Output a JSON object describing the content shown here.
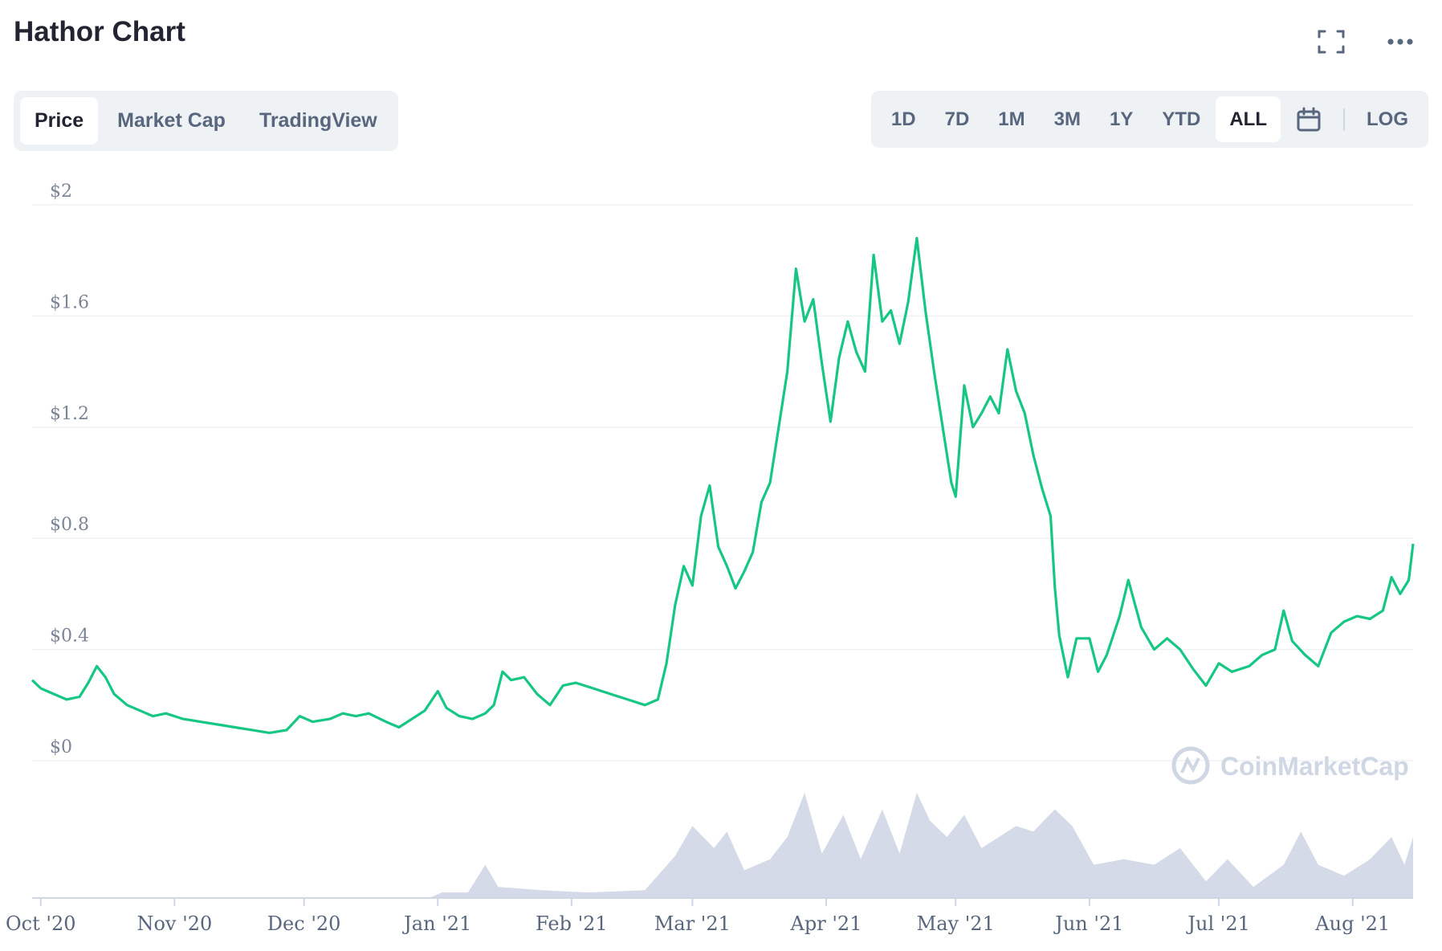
{
  "title": "Hathor Chart",
  "tabs": [
    {
      "label": "Price",
      "active": true
    },
    {
      "label": "Market Cap",
      "active": false
    },
    {
      "label": "TradingView",
      "active": false
    }
  ],
  "ranges": [
    {
      "label": "1D"
    },
    {
      "label": "7D"
    },
    {
      "label": "1M"
    },
    {
      "label": "3M"
    },
    {
      "label": "1Y"
    },
    {
      "label": "YTD"
    },
    {
      "label": "ALL",
      "active": true
    }
  ],
  "log_label": "LOG",
  "icons": {
    "fullscreen": "fullscreen-icon",
    "more": "more-icon",
    "calendar": "calendar-icon"
  },
  "watermark": "CoinMarketCap",
  "colors": {
    "line": "#16c784",
    "volume": "#cfd6e4",
    "grid": "#eff2f5",
    "text": "#58667e"
  },
  "chart_data": {
    "type": "line",
    "ylim": [
      0,
      2
    ],
    "yticks": [
      "$0",
      "$0.4",
      "$0.8",
      "$1.2",
      "$1.6",
      "$2"
    ],
    "ytick_values": [
      0,
      0.4,
      0.8,
      1.2,
      1.6,
      2.0
    ],
    "x_labels": [
      "Oct '20",
      "Nov '20",
      "Dec '20",
      "Jan '21",
      "Feb '21",
      "Mar '21",
      "Apr '21",
      "May '21",
      "Jun '21",
      "Jul '21",
      "Aug '21"
    ],
    "x_label_dates": [
      "2020-10-01",
      "2020-11-01",
      "2020-12-01",
      "2021-01-01",
      "2021-02-01",
      "2021-03-01",
      "2021-04-01",
      "2021-05-01",
      "2021-06-01",
      "2021-07-01",
      "2021-08-01"
    ],
    "xlim": [
      "2020-09-29",
      "2021-08-15"
    ],
    "series": [
      {
        "values": [
          [
            "2020-09-29",
            0.29
          ],
          [
            "2020-10-01",
            0.26
          ],
          [
            "2020-10-04",
            0.24
          ],
          [
            "2020-10-07",
            0.22
          ],
          [
            "2020-10-10",
            0.23
          ],
          [
            "2020-10-12",
            0.28
          ],
          [
            "2020-10-14",
            0.34
          ],
          [
            "2020-10-16",
            0.3
          ],
          [
            "2020-10-18",
            0.24
          ],
          [
            "2020-10-21",
            0.2
          ],
          [
            "2020-10-24",
            0.18
          ],
          [
            "2020-10-27",
            0.16
          ],
          [
            "2020-10-30",
            0.17
          ],
          [
            "2020-11-03",
            0.15
          ],
          [
            "2020-11-07",
            0.14
          ],
          [
            "2020-11-11",
            0.13
          ],
          [
            "2020-11-15",
            0.12
          ],
          [
            "2020-11-19",
            0.11
          ],
          [
            "2020-11-23",
            0.1
          ],
          [
            "2020-11-27",
            0.11
          ],
          [
            "2020-11-30",
            0.16
          ],
          [
            "2020-12-03",
            0.14
          ],
          [
            "2020-12-07",
            0.15
          ],
          [
            "2020-12-10",
            0.17
          ],
          [
            "2020-12-13",
            0.16
          ],
          [
            "2020-12-16",
            0.17
          ],
          [
            "2020-12-20",
            0.14
          ],
          [
            "2020-12-23",
            0.12
          ],
          [
            "2020-12-26",
            0.15
          ],
          [
            "2020-12-29",
            0.18
          ],
          [
            "2021-01-01",
            0.25
          ],
          [
            "2021-01-03",
            0.19
          ],
          [
            "2021-01-06",
            0.16
          ],
          [
            "2021-01-09",
            0.15
          ],
          [
            "2021-01-12",
            0.17
          ],
          [
            "2021-01-14",
            0.2
          ],
          [
            "2021-01-16",
            0.32
          ],
          [
            "2021-01-18",
            0.29
          ],
          [
            "2021-01-21",
            0.3
          ],
          [
            "2021-01-24",
            0.24
          ],
          [
            "2021-01-27",
            0.2
          ],
          [
            "2021-01-30",
            0.27
          ],
          [
            "2021-02-02",
            0.28
          ],
          [
            "2021-02-06",
            0.26
          ],
          [
            "2021-02-10",
            0.24
          ],
          [
            "2021-02-14",
            0.22
          ],
          [
            "2021-02-18",
            0.2
          ],
          [
            "2021-02-21",
            0.22
          ],
          [
            "2021-02-23",
            0.35
          ],
          [
            "2021-02-25",
            0.56
          ],
          [
            "2021-02-27",
            0.7
          ],
          [
            "2021-03-01",
            0.63
          ],
          [
            "2021-03-03",
            0.88
          ],
          [
            "2021-03-05",
            0.99
          ],
          [
            "2021-03-07",
            0.77
          ],
          [
            "2021-03-09",
            0.7
          ],
          [
            "2021-03-11",
            0.62
          ],
          [
            "2021-03-13",
            0.68
          ],
          [
            "2021-03-15",
            0.75
          ],
          [
            "2021-03-17",
            0.93
          ],
          [
            "2021-03-19",
            1.0
          ],
          [
            "2021-03-21",
            1.2
          ],
          [
            "2021-03-23",
            1.4
          ],
          [
            "2021-03-25",
            1.77
          ],
          [
            "2021-03-27",
            1.58
          ],
          [
            "2021-03-29",
            1.66
          ],
          [
            "2021-03-31",
            1.43
          ],
          [
            "2021-04-02",
            1.22
          ],
          [
            "2021-04-04",
            1.45
          ],
          [
            "2021-04-06",
            1.58
          ],
          [
            "2021-04-08",
            1.47
          ],
          [
            "2021-04-10",
            1.4
          ],
          [
            "2021-04-12",
            1.82
          ],
          [
            "2021-04-14",
            1.58
          ],
          [
            "2021-04-16",
            1.62
          ],
          [
            "2021-04-18",
            1.5
          ],
          [
            "2021-04-20",
            1.65
          ],
          [
            "2021-04-22",
            1.88
          ],
          [
            "2021-04-24",
            1.62
          ],
          [
            "2021-04-26",
            1.4
          ],
          [
            "2021-04-28",
            1.2
          ],
          [
            "2021-04-30",
            1.0
          ],
          [
            "2021-05-01",
            0.95
          ],
          [
            "2021-05-03",
            1.35
          ],
          [
            "2021-05-05",
            1.2
          ],
          [
            "2021-05-07",
            1.25
          ],
          [
            "2021-05-09",
            1.31
          ],
          [
            "2021-05-11",
            1.25
          ],
          [
            "2021-05-13",
            1.48
          ],
          [
            "2021-05-15",
            1.33
          ],
          [
            "2021-05-17",
            1.25
          ],
          [
            "2021-05-19",
            1.1
          ],
          [
            "2021-05-21",
            0.98
          ],
          [
            "2021-05-23",
            0.88
          ],
          [
            "2021-05-24",
            0.62
          ],
          [
            "2021-05-25",
            0.45
          ],
          [
            "2021-05-27",
            0.3
          ],
          [
            "2021-05-29",
            0.44
          ],
          [
            "2021-06-01",
            0.44
          ],
          [
            "2021-06-03",
            0.32
          ],
          [
            "2021-06-05",
            0.38
          ],
          [
            "2021-06-08",
            0.52
          ],
          [
            "2021-06-10",
            0.65
          ],
          [
            "2021-06-13",
            0.48
          ],
          [
            "2021-06-16",
            0.4
          ],
          [
            "2021-06-19",
            0.44
          ],
          [
            "2021-06-22",
            0.4
          ],
          [
            "2021-06-25",
            0.33
          ],
          [
            "2021-06-28",
            0.27
          ],
          [
            "2021-07-01",
            0.35
          ],
          [
            "2021-07-04",
            0.32
          ],
          [
            "2021-07-08",
            0.34
          ],
          [
            "2021-07-11",
            0.38
          ],
          [
            "2021-07-14",
            0.4
          ],
          [
            "2021-07-16",
            0.54
          ],
          [
            "2021-07-18",
            0.43
          ],
          [
            "2021-07-21",
            0.38
          ],
          [
            "2021-07-24",
            0.34
          ],
          [
            "2021-07-27",
            0.46
          ],
          [
            "2021-07-30",
            0.5
          ],
          [
            "2021-08-02",
            0.52
          ],
          [
            "2021-08-05",
            0.51
          ],
          [
            "2021-08-08",
            0.54
          ],
          [
            "2021-08-10",
            0.66
          ],
          [
            "2021-08-12",
            0.6
          ],
          [
            "2021-08-14",
            0.65
          ],
          [
            "2021-08-15",
            0.78
          ]
        ]
      }
    ],
    "volume": {
      "ylim": [
        0,
        1
      ],
      "values": [
        [
          "2020-09-29",
          0.0
        ],
        [
          "2020-12-30",
          0.0
        ],
        [
          "2021-01-02",
          0.05
        ],
        [
          "2021-01-08",
          0.05
        ],
        [
          "2021-01-12",
          0.3
        ],
        [
          "2021-01-15",
          0.1
        ],
        [
          "2021-01-25",
          0.07
        ],
        [
          "2021-02-05",
          0.05
        ],
        [
          "2021-02-18",
          0.07
        ],
        [
          "2021-02-25",
          0.38
        ],
        [
          "2021-03-01",
          0.65
        ],
        [
          "2021-03-06",
          0.45
        ],
        [
          "2021-03-09",
          0.6
        ],
        [
          "2021-03-13",
          0.25
        ],
        [
          "2021-03-19",
          0.35
        ],
        [
          "2021-03-23",
          0.55
        ],
        [
          "2021-03-27",
          0.95
        ],
        [
          "2021-03-31",
          0.4
        ],
        [
          "2021-04-05",
          0.75
        ],
        [
          "2021-04-09",
          0.35
        ],
        [
          "2021-04-14",
          0.8
        ],
        [
          "2021-04-18",
          0.4
        ],
        [
          "2021-04-22",
          0.95
        ],
        [
          "2021-04-25",
          0.7
        ],
        [
          "2021-04-29",
          0.55
        ],
        [
          "2021-05-03",
          0.75
        ],
        [
          "2021-05-07",
          0.45
        ],
        [
          "2021-05-11",
          0.55
        ],
        [
          "2021-05-15",
          0.65
        ],
        [
          "2021-05-19",
          0.6
        ],
        [
          "2021-05-24",
          0.8
        ],
        [
          "2021-05-28",
          0.65
        ],
        [
          "2021-06-02",
          0.3
        ],
        [
          "2021-06-09",
          0.35
        ],
        [
          "2021-06-16",
          0.3
        ],
        [
          "2021-06-22",
          0.45
        ],
        [
          "2021-06-28",
          0.15
        ],
        [
          "2021-07-03",
          0.35
        ],
        [
          "2021-07-09",
          0.1
        ],
        [
          "2021-07-16",
          0.3
        ],
        [
          "2021-07-20",
          0.6
        ],
        [
          "2021-07-24",
          0.3
        ],
        [
          "2021-07-30",
          0.2
        ],
        [
          "2021-08-05",
          0.35
        ],
        [
          "2021-08-10",
          0.55
        ],
        [
          "2021-08-13",
          0.3
        ],
        [
          "2021-08-15",
          0.55
        ]
      ]
    }
  }
}
